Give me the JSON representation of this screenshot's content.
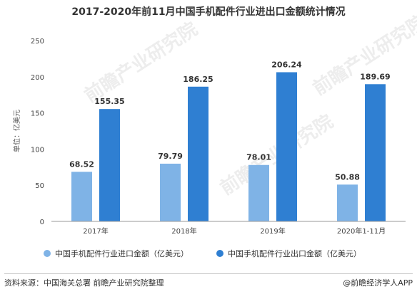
{
  "title": "2017-2020年前11月中国手机配件行业进出口金额统计情况",
  "source": {
    "left": "资料来源：中国海关总署 前瞻产业研究院整理",
    "right": "@前瞻经济学人APP"
  },
  "watermark": "前瞻产业研究院",
  "colors": {
    "import": "#7fb3e6",
    "export": "#2f7fd2",
    "axis": "#999999",
    "grid": "#e6e6e6"
  },
  "chart_data": {
    "type": "bar",
    "title": "2017-2020年前11月中国手机配件行业进出口金额统计情况",
    "categories": [
      "2017年",
      "2018年",
      "2019年",
      "2020年1-11月"
    ],
    "series": [
      {
        "name": "中国手机配件行业进口金额（亿美元）",
        "values": [
          68.52,
          79.79,
          78.01,
          50.88
        ]
      },
      {
        "name": "中国手机配件行业出口金额（亿美元）",
        "values": [
          155.35,
          186.25,
          206.24,
          189.69
        ]
      }
    ],
    "value_labels": [
      [
        "68.52",
        "79.79",
        "78.01",
        "50.88"
      ],
      [
        "155.35",
        "186.25",
        "206.24",
        "189.69"
      ]
    ],
    "ylabel": "单位：亿美元",
    "xlabel": "",
    "ylim": [
      0,
      250
    ],
    "yticks": [
      0,
      50,
      100,
      150,
      200,
      250
    ],
    "ytick_labels": [
      "0",
      "50",
      "100",
      "150",
      "200",
      "250"
    ],
    "grid": false,
    "legend": "bottom"
  }
}
